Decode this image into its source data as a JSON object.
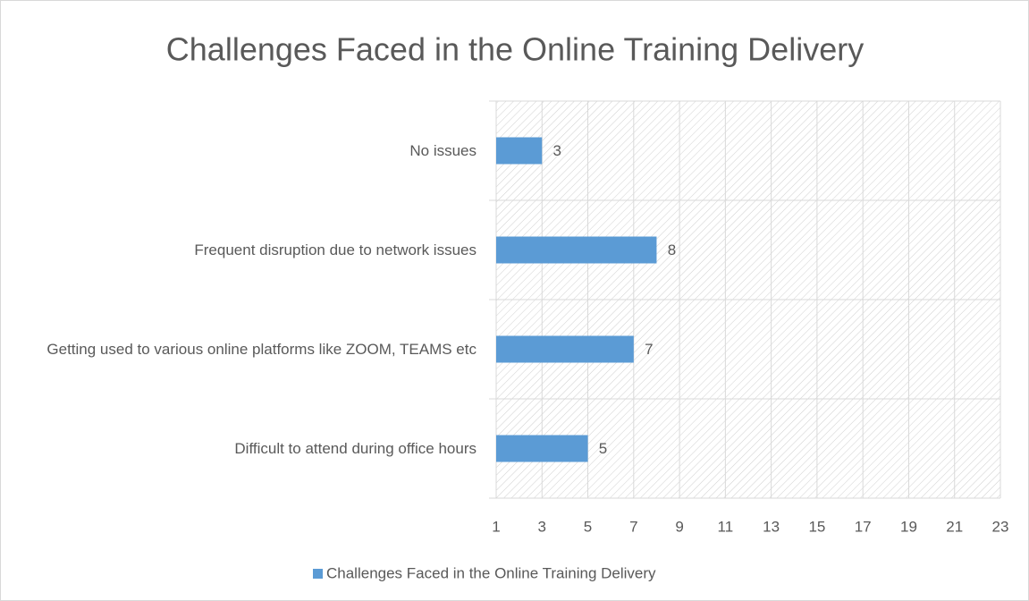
{
  "chart_data": {
    "type": "bar",
    "orientation": "horizontal",
    "title": "Challenges Faced in the Online Training Delivery",
    "categories": [
      "No issues",
      "Frequent disruption due to network issues",
      "Getting used to various online platforms like ZOOM, TEAMS etc",
      "Difficult to attend during office hours"
    ],
    "series": [
      {
        "name": "Challenges Faced in the Online Training Delivery",
        "color": "#5b9bd5",
        "values": [
          3,
          8,
          7,
          5
        ]
      }
    ],
    "xlim": [
      1,
      23
    ],
    "xticks": [
      1,
      3,
      5,
      7,
      9,
      11,
      13,
      15,
      17,
      19,
      21,
      23
    ],
    "grid": true,
    "legend": "bottom"
  }
}
